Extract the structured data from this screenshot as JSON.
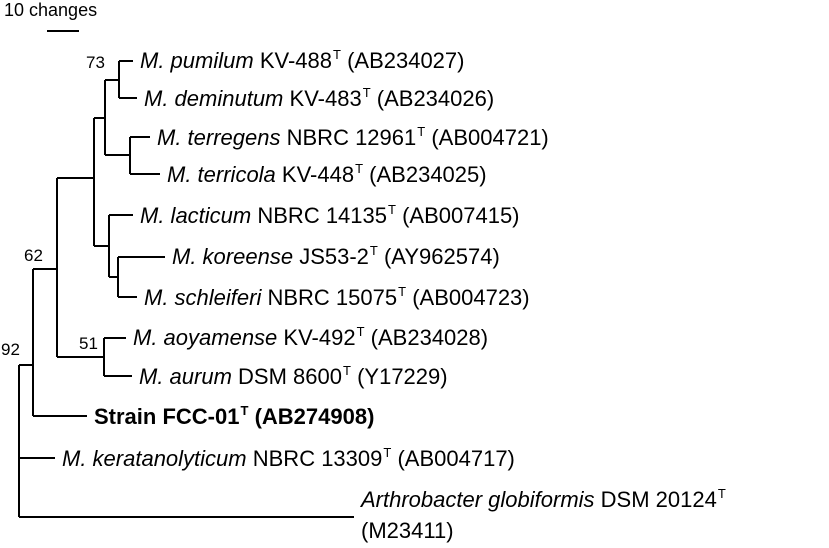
{
  "scale_bar": {
    "label": "10 changes"
  },
  "taxa": [
    {
      "id": "pumilum",
      "italic": "M. pumilum",
      "strain": "KV-488",
      "sup": "T",
      "accession": "(AB234027)"
    },
    {
      "id": "deminutum",
      "italic": "M. deminutum",
      "strain": "KV-483",
      "sup": "T",
      "accession": "(AB234026)"
    },
    {
      "id": "terregens",
      "italic": "M. terregens",
      "strain": "NBRC 12961",
      "sup": "T",
      "accession": "(AB004721)"
    },
    {
      "id": "terricola",
      "italic": "M. terricola",
      "strain": "KV-448",
      "sup": "T",
      "accession": "(AB234025)"
    },
    {
      "id": "lacticum",
      "italic": "M. lacticum",
      "strain": "NBRC 14135",
      "sup": "T",
      "accession": "(AB007415)"
    },
    {
      "id": "koreense",
      "italic": "M. koreense",
      "strain": "JS53-2",
      "sup": "T",
      "accession": "(AY962574)"
    },
    {
      "id": "schleiferi",
      "italic": "M. schleiferi",
      "strain": "NBRC 15075",
      "sup": "T",
      "accession": "(AB004723)"
    },
    {
      "id": "aoyamense",
      "italic": "M. aoyamense",
      "strain": "KV-492",
      "sup": "T",
      "accession": "(AB234028)"
    },
    {
      "id": "aurum",
      "italic": "M. aurum",
      "strain": "DSM 8600",
      "sup": "T",
      "accession": "(Y17229)"
    },
    {
      "id": "fcc01",
      "bold_name": "Strain FCC-01",
      "sup": "T",
      "accession": "(AB274908)"
    },
    {
      "id": "keratanolyticum",
      "italic": "M. keratanolyticum",
      "strain": "NBRC 13309",
      "sup": "T",
      "accession": "(AB004717)"
    },
    {
      "id": "globiformis",
      "italic": "Arthrobacter globiformis",
      "strain": "DSM 20124",
      "sup": "T",
      "accession": "(M23411)"
    }
  ],
  "bootstrap": [
    "73",
    "62",
    "51",
    "92"
  ]
}
